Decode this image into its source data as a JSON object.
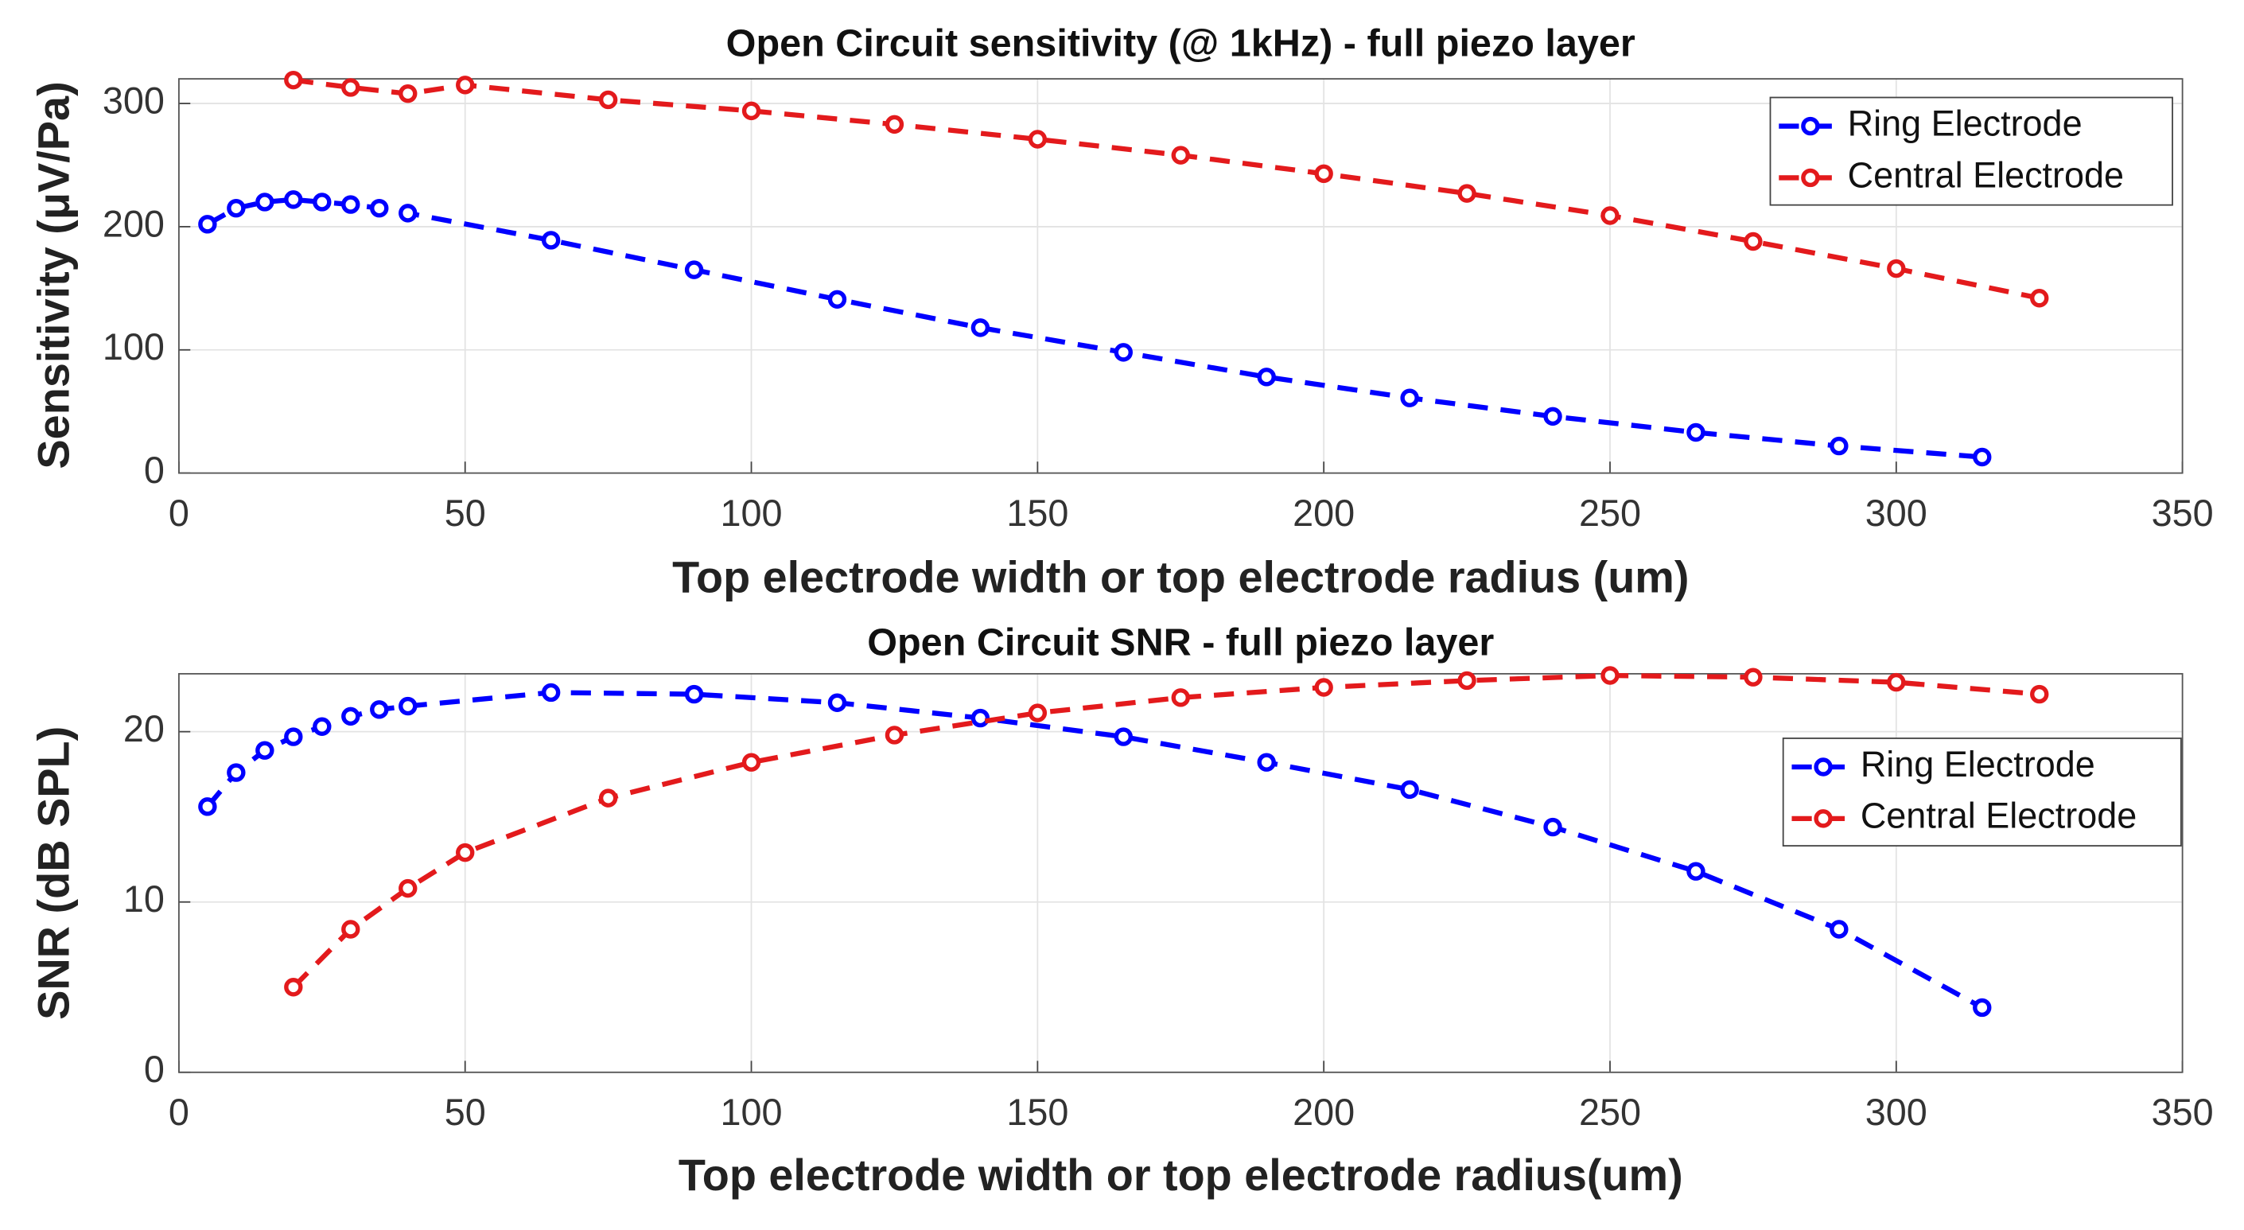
{
  "chart_data": [
    {
      "type": "line",
      "title": "Open Circuit sensitivity (@ 1kHz) - full piezo layer",
      "xlabel": "Top electrode width or top electrode radius (um)",
      "ylabel": "Sensitivity (μV/Pa)",
      "xlim": [
        0,
        350
      ],
      "xticks": [
        0,
        50,
        100,
        150,
        200,
        250,
        300,
        350
      ],
      "ylim": [
        0,
        320
      ],
      "yticks": [
        0,
        100,
        200,
        300
      ],
      "grid": true,
      "legend": "northeast",
      "series": [
        {
          "name": "Ring Electrode",
          "color": "#0000ff",
          "x": [
            5,
            10,
            15,
            20,
            25,
            30,
            35,
            40,
            65,
            90,
            115,
            140,
            165,
            190,
            215,
            240,
            265,
            290,
            315
          ],
          "values": [
            202,
            215,
            220,
            222,
            220,
            218,
            215,
            211,
            189,
            165,
            141,
            118,
            98,
            78,
            61,
            46,
            33,
            22,
            13
          ]
        },
        {
          "name": "Central Electrode",
          "color": "#e31a1c",
          "x": [
            20,
            30,
            40,
            50,
            75,
            100,
            125,
            150,
            175,
            200,
            225,
            250,
            275,
            300,
            325
          ],
          "values": [
            319,
            313,
            308,
            315,
            303,
            294,
            283,
            271,
            258,
            243,
            227,
            209,
            188,
            166,
            142
          ]
        }
      ]
    },
    {
      "type": "line",
      "title": "Open Circuit SNR - full piezo layer",
      "xlabel": "Top electrode width or top electrode radius(um)",
      "ylabel": "SNR (dB SPL)",
      "xlim": [
        0,
        350
      ],
      "xticks": [
        0,
        50,
        100,
        150,
        200,
        250,
        300,
        350
      ],
      "ylim": [
        0,
        23.4
      ],
      "yticks": [
        0,
        10,
        20
      ],
      "grid": true,
      "legend": "northeast",
      "series": [
        {
          "name": "Ring Electrode",
          "color": "#0000ff",
          "x": [
            5,
            10,
            15,
            20,
            25,
            30,
            35,
            40,
            65,
            90,
            115,
            140,
            165,
            190,
            215,
            240,
            265,
            290,
            315
          ],
          "values": [
            15.6,
            17.6,
            18.9,
            19.7,
            20.3,
            20.9,
            21.3,
            21.5,
            22.3,
            22.2,
            21.7,
            20.8,
            19.7,
            18.2,
            16.6,
            14.4,
            11.8,
            8.4,
            3.8
          ]
        },
        {
          "name": "Central Electrode",
          "color": "#e31a1c",
          "x": [
            20,
            30,
            40,
            50,
            75,
            100,
            125,
            150,
            175,
            200,
            225,
            250,
            275,
            300,
            325
          ],
          "values": [
            5.0,
            8.4,
            10.8,
            12.9,
            16.1,
            18.2,
            19.8,
            21.1,
            22.0,
            22.6,
            23.0,
            23.3,
            23.2,
            22.9,
            22.2
          ]
        }
      ]
    }
  ]
}
